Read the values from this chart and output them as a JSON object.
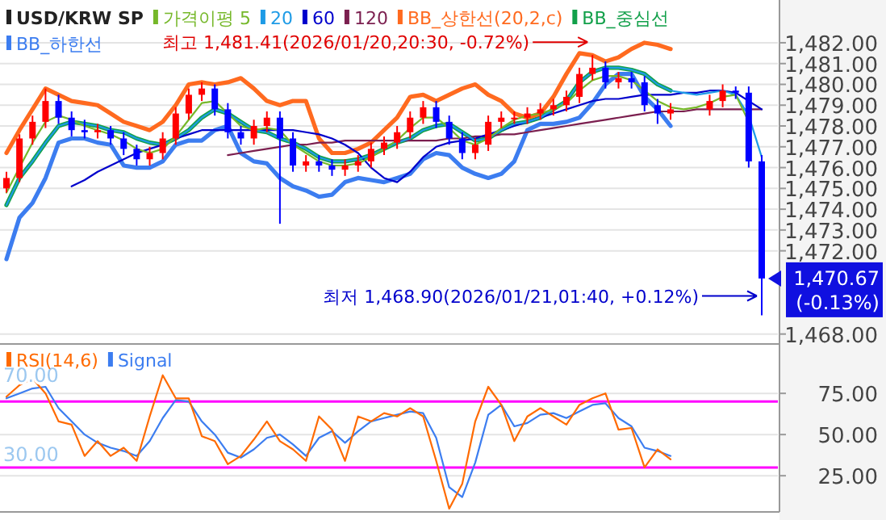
{
  "chart_data": [
    {
      "type": "candlestick",
      "title": "USD/KRW SP",
      "categories": [
        null,
        null,
        null,
        null,
        null,
        null,
        null,
        null,
        null,
        null,
        null,
        null,
        null,
        null,
        null,
        null,
        null,
        null,
        null,
        null,
        null,
        null,
        null,
        null,
        null,
        null,
        null,
        null,
        null,
        null,
        null,
        null,
        null,
        null,
        null,
        null,
        null,
        null,
        null,
        null,
        null,
        null,
        null,
        null,
        null,
        null,
        null,
        null,
        null,
        null,
        null,
        null,
        null,
        null,
        null,
        null,
        null,
        null,
        null
      ],
      "ohlc": [
        [
          1475.0,
          1475.8,
          1474.8,
          1475.5
        ],
        [
          1475.5,
          1477.6,
          1475.3,
          1477.4
        ],
        [
          1477.4,
          1478.5,
          1477.1,
          1478.2
        ],
        [
          1478.2,
          1479.8,
          1477.9,
          1479.2
        ],
        [
          1479.2,
          1479.5,
          1478.1,
          1478.4
        ],
        [
          1478.4,
          1478.7,
          1477.5,
          1477.8
        ],
        [
          1477.8,
          1478.3,
          1477.4,
          1477.7
        ],
        [
          1477.7,
          1478.1,
          1477.4,
          1477.8
        ],
        [
          1477.8,
          1478.0,
          1477.1,
          1477.4
        ],
        [
          1477.4,
          1477.7,
          1476.6,
          1476.9
        ],
        [
          1476.9,
          1477.1,
          1476.1,
          1476.4
        ],
        [
          1476.4,
          1477.0,
          1476.1,
          1476.7
        ],
        [
          1476.7,
          1477.7,
          1476.4,
          1477.4
        ],
        [
          1477.4,
          1478.9,
          1477.1,
          1478.6
        ],
        [
          1478.6,
          1479.8,
          1478.3,
          1479.5
        ],
        [
          1479.5,
          1480.1,
          1479.2,
          1479.8
        ],
        [
          1479.8,
          1480.0,
          1478.5,
          1478.8
        ],
        [
          1478.8,
          1479.1,
          1477.4,
          1477.7
        ],
        [
          1477.7,
          1478.0,
          1477.1,
          1477.4
        ],
        [
          1477.4,
          1478.3,
          1477.1,
          1478.0
        ],
        [
          1478.0,
          1478.7,
          1477.7,
          1478.4
        ],
        [
          1478.4,
          1478.7,
          1473.3,
          1477.4
        ],
        [
          1477.4,
          1477.7,
          1475.8,
          1476.1
        ],
        [
          1476.1,
          1476.6,
          1475.8,
          1476.3
        ],
        [
          1476.3,
          1476.6,
          1475.8,
          1476.1
        ],
        [
          1476.1,
          1476.4,
          1475.6,
          1475.9
        ],
        [
          1475.9,
          1476.4,
          1475.6,
          1476.1
        ],
        [
          1476.1,
          1476.6,
          1475.8,
          1476.3
        ],
        [
          1476.3,
          1477.2,
          1476.0,
          1476.9
        ],
        [
          1476.9,
          1477.5,
          1476.6,
          1477.2
        ],
        [
          1477.2,
          1478.0,
          1476.9,
          1477.7
        ],
        [
          1477.7,
          1478.7,
          1477.4,
          1478.4
        ],
        [
          1478.4,
          1479.2,
          1478.1,
          1478.9
        ],
        [
          1478.9,
          1479.2,
          1477.9,
          1478.2
        ],
        [
          1478.2,
          1478.5,
          1477.1,
          1477.4
        ],
        [
          1477.4,
          1477.7,
          1476.4,
          1476.7
        ],
        [
          1476.7,
          1477.4,
          1476.4,
          1477.1
        ],
        [
          1477.1,
          1478.5,
          1476.8,
          1478.2
        ],
        [
          1478.2,
          1478.7,
          1477.9,
          1478.4
        ],
        [
          1478.4,
          1478.7,
          1478.1,
          1478.4
        ],
        [
          1478.4,
          1478.9,
          1478.1,
          1478.6
        ],
        [
          1478.6,
          1479.1,
          1478.3,
          1478.8
        ],
        [
          1478.8,
          1479.3,
          1478.5,
          1479.0
        ],
        [
          1479.0,
          1479.7,
          1478.7,
          1479.4
        ],
        [
          1479.4,
          1480.8,
          1479.1,
          1480.5
        ],
        [
          1480.5,
          1481.41,
          1480.2,
          1480.8
        ],
        [
          1480.8,
          1481.1,
          1479.8,
          1480.1
        ],
        [
          1480.1,
          1480.6,
          1479.8,
          1480.3
        ],
        [
          1480.3,
          1480.6,
          1479.8,
          1480.1
        ],
        [
          1480.1,
          1480.4,
          1478.7,
          1479.0
        ],
        [
          1479.0,
          1479.3,
          1478.1,
          1478.6
        ],
        [
          1478.6,
          1479.1,
          1478.3,
          1478.8
        ],
        null,
        null,
        [
          1478.8,
          1479.5,
          1478.5,
          1479.2
        ],
        [
          1479.2,
          1480.0,
          1478.9,
          1479.7
        ],
        [
          1479.7,
          1479.9,
          1479.3,
          1479.6
        ],
        [
          1479.6,
          1479.9,
          1476.0,
          1476.3
        ],
        [
          1476.3,
          1476.6,
          1468.9,
          1470.67
        ]
      ],
      "series": [
        {
          "name": "가격이평 5",
          "type": "line",
          "color": "#76b82a",
          "values": [
            1474.8,
            1476.0,
            1477.2,
            1478.2,
            1478.5,
            1478.3,
            1478.0,
            1477.8,
            1477.6,
            1477.3,
            1476.9,
            1476.7,
            1476.9,
            1477.5,
            1478.3,
            1479.1,
            1479.2,
            1478.6,
            1478.0,
            1477.8,
            1477.9,
            1477.8,
            1477.1,
            1476.7,
            1476.3,
            1476.1,
            1476.1,
            1476.2,
            1476.5,
            1476.9,
            1477.3,
            1477.9,
            1478.4,
            1478.4,
            1477.9,
            1477.3,
            1477.1,
            1477.4,
            1477.9,
            1478.3,
            1478.5,
            1478.6,
            1478.8,
            1479.1,
            1479.7,
            1480.2,
            1480.4,
            1480.4,
            1480.2,
            1479.7,
            1479.2,
            1478.9,
            1478.8,
            1478.9,
            1479.1,
            1479.4,
            1479.5,
            1478.2,
            null
          ]
        },
        {
          "name": "20",
          "type": "line",
          "color": "#1e9be6",
          "values": [
            1474.2,
            1475.5,
            1476.3,
            1477.2,
            1478.0,
            1478.2,
            1478.1,
            1478.0,
            1477.8,
            1477.7,
            1477.4,
            1477.2,
            1477.1,
            1477.4,
            1477.8,
            1478.4,
            1478.8,
            1478.6,
            1478.2,
            1477.8,
            1477.7,
            1477.4,
            1477.2,
            1476.9,
            1476.5,
            1476.3,
            1476.3,
            1476.4,
            1476.6,
            1476.9,
            1477.2,
            1477.4,
            1477.8,
            1478.0,
            1478.1,
            1477.7,
            1477.3,
            1477.4,
            1477.8,
            1478.1,
            1478.2,
            1478.4,
            1478.8,
            1479.2,
            1480.1,
            1480.6,
            1480.8,
            1480.8,
            1480.7,
            1480.5,
            1480.0,
            1479.7,
            1479.6,
            1479.5,
            1479.6,
            1479.7,
            1479.5,
            1478.5,
            1476.5
          ]
        },
        {
          "name": "60",
          "type": "line",
          "color": "#0000cc",
          "values": [
            null,
            null,
            null,
            null,
            null,
            1475.1,
            1475.4,
            1475.8,
            1476.1,
            1476.4,
            1476.7,
            1476.9,
            1477.1,
            1477.4,
            1477.6,
            1477.8,
            1477.8,
            1477.8,
            1477.8,
            1477.8,
            1477.8,
            1477.8,
            1477.8,
            1477.7,
            1477.6,
            1477.4,
            1477.1,
            1476.7,
            1476.0,
            1475.5,
            1475.3,
            1475.8,
            1476.5,
            1477.0,
            1477.2,
            1477.3,
            1477.4,
            1477.6,
            1477.8,
            1478.0,
            1478.2,
            1478.4,
            1478.6,
            1478.8,
            1479.0,
            1479.2,
            1479.3,
            1479.3,
            1479.4,
            1479.5,
            1479.5,
            1479.5,
            1479.6,
            1479.6,
            1479.7,
            1479.7,
            1479.6,
            1479.2,
            1478.8
          ]
        },
        {
          "name": "120",
          "type": "line",
          "color": "#7b1f4f",
          "values": [
            null,
            null,
            null,
            null,
            null,
            null,
            null,
            null,
            null,
            null,
            null,
            null,
            null,
            null,
            null,
            null,
            null,
            1476.6,
            1476.7,
            1476.8,
            1476.9,
            1477.0,
            1477.1,
            1477.1,
            1477.2,
            1477.2,
            1477.3,
            1477.3,
            1477.3,
            1477.3,
            1477.3,
            1477.3,
            1477.3,
            1477.3,
            1477.4,
            1477.4,
            1477.5,
            1477.5,
            1477.6,
            1477.6,
            1477.7,
            1477.8,
            1477.9,
            1478.0,
            1478.1,
            1478.2,
            1478.3,
            1478.4,
            1478.5,
            1478.6,
            1478.7,
            1478.7,
            1478.7,
            1478.8,
            1478.8,
            1478.8,
            1478.8,
            1478.8,
            1478.8
          ]
        },
        {
          "name": "BB_상한선(20,2,c)",
          "type": "line",
          "color": "#ff6a1f",
          "values": [
            1476.7,
            1477.8,
            1478.8,
            1479.8,
            1479.5,
            1479.2,
            1479.1,
            1479.0,
            1478.6,
            1478.2,
            1478.0,
            1477.8,
            1478.2,
            1479.0,
            1480.0,
            1480.1,
            1480.0,
            1480.1,
            1480.3,
            1479.8,
            1479.2,
            1479.0,
            1479.2,
            1479.2,
            1477.4,
            1476.7,
            1476.7,
            1476.9,
            1477.2,
            1477.8,
            1478.4,
            1479.4,
            1479.5,
            1479.2,
            1479.5,
            1479.8,
            1480.0,
            1479.5,
            1479.2,
            1478.6,
            1478.4,
            1478.6,
            1479.4,
            1480.5,
            1481.5,
            1481.4,
            1481.1,
            1481.3,
            1481.7,
            1482.0,
            1481.9,
            1481.7,
            null,
            null,
            null,
            null,
            null,
            null,
            null
          ]
        },
        {
          "name": "BB_중심선",
          "type": "line",
          "color": "#12a04a",
          "values": [
            1474.2,
            1475.5,
            1476.3,
            1477.2,
            1478.0,
            1478.2,
            1478.1,
            1478.0,
            1477.8,
            1477.7,
            1477.4,
            1477.2,
            1477.1,
            1477.4,
            1477.8,
            1478.4,
            1478.8,
            1478.6,
            1478.2,
            1477.8,
            1477.7,
            1477.4,
            1477.2,
            1476.9,
            1476.5,
            1476.3,
            1476.3,
            1476.4,
            1476.6,
            1476.9,
            1477.2,
            1477.4,
            1477.8,
            1478.0,
            1478.1,
            1477.7,
            1477.3,
            1477.4,
            1477.8,
            1478.1,
            1478.2,
            1478.4,
            1478.8,
            1479.2,
            1480.1,
            1480.6,
            1480.8,
            1480.8,
            1480.7,
            1480.5,
            1480.0,
            1479.7,
            null,
            null,
            null,
            null,
            null,
            null,
            null
          ]
        },
        {
          "name": "BB_하한선",
          "type": "line",
          "color": "#3c7df0",
          "values": [
            1471.6,
            1473.6,
            1474.3,
            1475.5,
            1477.2,
            1477.4,
            1477.4,
            1477.2,
            1477.1,
            1476.1,
            1476.0,
            1476.0,
            1476.3,
            1477.1,
            1477.3,
            1477.3,
            1477.8,
            1478.0,
            1476.7,
            1476.3,
            1476.2,
            1475.5,
            1475.1,
            1474.9,
            1474.6,
            1474.7,
            1475.3,
            1475.5,
            1475.4,
            1475.3,
            1475.5,
            1475.7,
            1476.4,
            1476.7,
            1476.6,
            1476.0,
            1475.7,
            1475.5,
            1475.7,
            1476.3,
            1477.8,
            1478.1,
            1478.1,
            1478.2,
            1478.4,
            1479.1,
            1480.0,
            1480.5,
            1480.5,
            1479.4,
            1478.8,
            1478.0,
            null,
            null,
            null,
            null,
            null,
            null,
            null
          ]
        }
      ],
      "ylim": [
        1467.6,
        1483.9
      ],
      "yticks": [
        {
          "value": 1468,
          "label": "1,468.00"
        },
        {
          "value": 1472,
          "label": "1,472.00"
        },
        {
          "value": 1473,
          "label": "1,473.00"
        },
        {
          "value": 1474,
          "label": "1,474.00"
        },
        {
          "value": 1475,
          "label": "1,475.00"
        },
        {
          "value": 1476,
          "label": "1,476.00"
        },
        {
          "value": 1477,
          "label": "1,477.00"
        },
        {
          "value": 1478,
          "label": "1,478.00"
        },
        {
          "value": 1479,
          "label": "1,479.00"
        },
        {
          "value": 1480,
          "label": "1,480.00"
        },
        {
          "value": 1481,
          "label": "1,481.00"
        },
        {
          "value": 1482,
          "label": "1,482.00"
        }
      ],
      "grid": "y",
      "legend": "top",
      "annotations": [
        "최고 1,481.41(2026/01/20,20:30, -0.72%)",
        "최저 1,468.90(2026/01/21,01:40, +0.12%)",
        "1,470.67",
        "(-0.13%)"
      ]
    },
    {
      "type": "line",
      "categories": [
        null,
        null,
        null,
        null,
        null,
        null,
        null,
        null,
        null,
        null,
        null,
        null,
        null,
        null,
        null,
        null,
        null,
        null,
        null,
        null,
        null,
        null,
        null,
        null,
        null,
        null,
        null,
        null,
        null,
        null,
        null,
        null,
        null,
        null,
        null,
        null,
        null,
        null,
        null,
        null,
        null,
        null,
        null,
        null,
        null,
        null,
        null,
        null,
        null,
        null,
        null,
        null,
        null,
        null,
        null,
        null,
        null,
        null,
        null
      ],
      "series": [
        {
          "name": "RSI(14,6)",
          "color": "#ff6a00",
          "values": [
            73,
            80,
            84,
            75,
            58,
            56,
            37,
            46,
            37,
            42,
            34,
            61,
            86,
            72,
            72,
            49,
            46,
            32,
            37,
            47,
            58,
            46,
            41,
            34,
            61,
            53,
            34,
            61,
            58,
            63,
            61,
            66,
            61,
            34,
            5,
            20,
            58,
            79,
            68,
            46,
            61,
            66,
            61,
            56,
            68,
            72,
            75,
            53,
            54,
            30,
            41,
            35,
            null,
            null,
            null,
            null,
            null,
            null,
            null
          ]
        },
        {
          "name": "Signal",
          "color": "#3c7df0",
          "values": [
            72,
            75,
            78,
            79,
            66,
            58,
            50,
            45,
            42,
            40,
            37,
            46,
            60,
            71,
            70,
            58,
            50,
            39,
            36,
            41,
            48,
            50,
            44,
            37,
            48,
            52,
            45,
            52,
            58,
            60,
            62,
            64,
            63,
            48,
            18,
            12,
            33,
            62,
            68,
            55,
            57,
            62,
            63,
            60,
            64,
            68,
            69,
            60,
            55,
            42,
            40,
            37,
            null,
            null,
            null,
            null,
            null,
            null,
            null
          ]
        }
      ],
      "ylim": [
        4,
        104
      ],
      "yticks": [
        {
          "value": 25,
          "label": "25.00"
        },
        {
          "value": 50,
          "label": "50.00"
        },
        {
          "value": 75,
          "label": "75.00"
        }
      ],
      "ref_lines": [
        {
          "axis": "y",
          "value": 70,
          "label": "70.00",
          "color": "#ff00ff"
        },
        {
          "axis": "y",
          "value": 30,
          "label": "30.00",
          "color": "#ff00ff"
        }
      ],
      "grid": "y",
      "legend": "top left"
    }
  ]
}
